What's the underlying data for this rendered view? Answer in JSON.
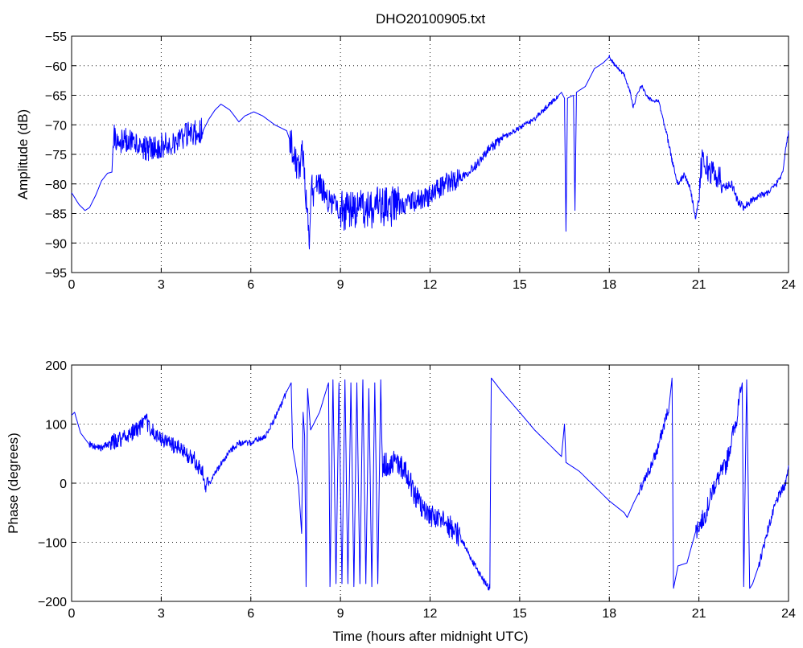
{
  "chart_data": [
    {
      "type": "line",
      "title": "DHO20100905.txt",
      "xlabel": "",
      "ylabel": "Amplitude (dB)",
      "xlim": [
        0,
        24
      ],
      "ylim": [
        -95,
        -55
      ],
      "xticks": [
        "0",
        "3",
        "6",
        "9",
        "12",
        "15",
        "18",
        "21",
        "24"
      ],
      "yticks": [
        "-95",
        "-90",
        "-85",
        "-80",
        "-75",
        "-70",
        "-65",
        "-60",
        "-55"
      ],
      "grid": true,
      "series": [
        {
          "color": "#0000ff",
          "points": [
            [
              0,
              -81.5
            ],
            [
              0.25,
              -83.5
            ],
            [
              0.45,
              -84.5
            ],
            [
              0.6,
              -84
            ],
            [
              0.8,
              -82
            ],
            [
              1.0,
              -79.5
            ],
            [
              1.2,
              -78.2
            ],
            [
              1.35,
              -78
            ],
            [
              1.4,
              -72
            ],
            [
              1.6,
              -72.5
            ],
            [
              2.0,
              -73
            ],
            [
              2.5,
              -74
            ],
            [
              3.0,
              -73.5
            ],
            [
              3.5,
              -72.5
            ],
            [
              4.0,
              -71.5
            ],
            [
              4.4,
              -71
            ],
            [
              4.6,
              -69
            ],
            [
              4.8,
              -67.5
            ],
            [
              5.0,
              -66.5
            ],
            [
              5.3,
              -67.5
            ],
            [
              5.6,
              -69.5
            ],
            [
              5.8,
              -68.5
            ],
            [
              6.1,
              -67.8
            ],
            [
              6.4,
              -68.5
            ],
            [
              6.8,
              -70
            ],
            [
              7.2,
              -71
            ],
            [
              7.4,
              -74
            ],
            [
              7.6,
              -78
            ],
            [
              7.75,
              -74
            ],
            [
              7.85,
              -82
            ],
            [
              7.95,
              -89.5
            ],
            [
              8.05,
              -81
            ],
            [
              8.3,
              -80
            ],
            [
              8.6,
              -83
            ],
            [
              8.9,
              -84
            ],
            [
              9.2,
              -84.5
            ],
            [
              9.5,
              -84
            ],
            [
              9.8,
              -84.5
            ],
            [
              10.2,
              -84
            ],
            [
              10.6,
              -84
            ],
            [
              11.0,
              -83.5
            ],
            [
              11.5,
              -83
            ],
            [
              12.0,
              -82
            ],
            [
              12.5,
              -80
            ],
            [
              13.0,
              -79
            ],
            [
              13.5,
              -77
            ],
            [
              14.0,
              -74
            ],
            [
              14.5,
              -72
            ],
            [
              15.0,
              -70.5
            ],
            [
              15.5,
              -69
            ],
            [
              16.0,
              -66.5
            ],
            [
              16.4,
              -64.5
            ],
            [
              16.5,
              -65.5
            ],
            [
              16.55,
              -88
            ],
            [
              16.6,
              -65.5
            ],
            [
              16.8,
              -65
            ],
            [
              16.85,
              -84.5
            ],
            [
              16.9,
              -64.5
            ],
            [
              17.2,
              -63.5
            ],
            [
              17.5,
              -60.5
            ],
            [
              17.8,
              -59.5
            ],
            [
              18.0,
              -58.5
            ],
            [
              18.2,
              -60
            ],
            [
              18.5,
              -61.5
            ],
            [
              18.7,
              -64.5
            ],
            [
              18.8,
              -67
            ],
            [
              19.0,
              -64
            ],
            [
              19.1,
              -63.5
            ],
            [
              19.3,
              -65.5
            ],
            [
              19.5,
              -66
            ],
            [
              19.65,
              -66
            ],
            [
              19.9,
              -71
            ],
            [
              20.1,
              -76
            ],
            [
              20.3,
              -80
            ],
            [
              20.5,
              -78.5
            ],
            [
              20.7,
              -80.5
            ],
            [
              20.9,
              -86
            ],
            [
              21.0,
              -82
            ],
            [
              21.1,
              -75.5
            ],
            [
              21.3,
              -77.5
            ],
            [
              21.6,
              -78.5
            ],
            [
              21.9,
              -80.5
            ],
            [
              22.1,
              -80
            ],
            [
              22.3,
              -83
            ],
            [
              22.5,
              -84
            ],
            [
              22.7,
              -83
            ],
            [
              23.0,
              -82
            ],
            [
              23.3,
              -81.5
            ],
            [
              23.6,
              -80
            ],
            [
              23.8,
              -78
            ],
            [
              24.0,
              -71
            ]
          ],
          "noise": [
            [
              1.4,
              4.4,
              2.2
            ],
            [
              7.3,
              8.1,
              3.0
            ],
            [
              8.2,
              9.0,
              2.0
            ],
            [
              9.0,
              11.0,
              3.5
            ],
            [
              11.0,
              13.0,
              1.8
            ],
            [
              13.0,
              14.5,
              0.8
            ],
            [
              14.5,
              16.3,
              0.4
            ],
            [
              18.0,
              19.8,
              0.3
            ],
            [
              19.8,
              21.0,
              0.5
            ],
            [
              21.0,
              21.8,
              2.2
            ],
            [
              21.8,
              22.8,
              0.7
            ],
            [
              22.8,
              24.0,
              0.5
            ]
          ]
        }
      ]
    },
    {
      "type": "line",
      "xlabel": "Time (hours after midnight UTC)",
      "ylabel": "Phase (degrees)",
      "xlim": [
        0,
        24
      ],
      "ylim": [
        -200,
        200
      ],
      "xticks": [
        "0",
        "3",
        "6",
        "9",
        "12",
        "15",
        "18",
        "21",
        "24"
      ],
      "yticks": [
        "-200",
        "-100",
        "0",
        "100",
        "200"
      ],
      "grid": true,
      "series": [
        {
          "color": "#0000ff",
          "points": [
            [
              0,
              115
            ],
            [
              0.1,
              120
            ],
            [
              0.3,
              85
            ],
            [
              0.6,
              65
            ],
            [
              1.0,
              60
            ],
            [
              1.5,
              72
            ],
            [
              2.0,
              85
            ],
            [
              2.3,
              95
            ],
            [
              2.5,
              105
            ],
            [
              2.8,
              80
            ],
            [
              3.2,
              70
            ],
            [
              3.7,
              55
            ],
            [
              4.1,
              40
            ],
            [
              4.4,
              15
            ],
            [
              4.45,
              -5
            ],
            [
              4.6,
              0
            ],
            [
              4.9,
              25
            ],
            [
              5.3,
              55
            ],
            [
              5.6,
              68
            ],
            [
              6.0,
              68
            ],
            [
              6.5,
              80
            ],
            [
              7.0,
              130
            ],
            [
              7.2,
              155
            ],
            [
              7.35,
              170
            ],
            [
              7.4,
              60
            ],
            [
              7.5,
              30
            ],
            [
              7.6,
              -5
            ],
            [
              7.7,
              -85
            ],
            [
              7.75,
              120
            ],
            [
              7.8,
              80
            ],
            [
              7.85,
              -175
            ],
            [
              7.9,
              160
            ],
            [
              8.0,
              90
            ],
            [
              8.3,
              120
            ],
            [
              8.6,
              170
            ],
            [
              8.65,
              -175
            ],
            [
              8.75,
              175
            ],
            [
              8.85,
              -170
            ],
            [
              8.95,
              170
            ],
            [
              9.05,
              -170
            ],
            [
              9.15,
              175
            ],
            [
              9.25,
              -170
            ],
            [
              9.35,
              170
            ],
            [
              9.45,
              -175
            ],
            [
              9.55,
              170
            ],
            [
              9.65,
              -170
            ],
            [
              9.75,
              175
            ],
            [
              9.85,
              -170
            ],
            [
              9.95,
              160
            ],
            [
              10.05,
              -175
            ],
            [
              10.15,
              170
            ],
            [
              10.25,
              -170
            ],
            [
              10.35,
              175
            ],
            [
              10.4,
              30
            ],
            [
              10.8,
              35
            ],
            [
              11.2,
              20
            ],
            [
              11.5,
              -20
            ],
            [
              11.8,
              -50
            ],
            [
              12.2,
              -60
            ],
            [
              12.6,
              -70
            ],
            [
              13.0,
              -90
            ],
            [
              13.4,
              -130
            ],
            [
              13.8,
              -165
            ],
            [
              14.0,
              -178
            ],
            [
              14.05,
              178
            ],
            [
              14.4,
              155
            ],
            [
              15.0,
              120
            ],
            [
              15.5,
              90
            ],
            [
              16.0,
              65
            ],
            [
              16.4,
              45
            ],
            [
              16.5,
              100
            ],
            [
              16.55,
              35
            ],
            [
              17.0,
              20
            ],
            [
              17.5,
              -5
            ],
            [
              18.0,
              -30
            ],
            [
              18.5,
              -50
            ],
            [
              18.6,
              -58
            ],
            [
              18.8,
              -35
            ],
            [
              19.2,
              5
            ],
            [
              19.6,
              55
            ],
            [
              20.0,
              130
            ],
            [
              20.1,
              178
            ],
            [
              20.15,
              -178
            ],
            [
              20.3,
              -140
            ],
            [
              20.6,
              -135
            ],
            [
              20.9,
              -80
            ],
            [
              21.2,
              -55
            ],
            [
              21.5,
              -5
            ],
            [
              21.9,
              30
            ],
            [
              22.3,
              120
            ],
            [
              22.45,
              170
            ],
            [
              22.5,
              -175
            ],
            [
              22.6,
              175
            ],
            [
              22.7,
              -178
            ],
            [
              22.8,
              -170
            ],
            [
              23.0,
              -140
            ],
            [
              23.3,
              -80
            ],
            [
              23.6,
              -30
            ],
            [
              23.9,
              0
            ],
            [
              24.0,
              30
            ]
          ],
          "noise": [
            [
              0.6,
              1.3,
              6
            ],
            [
              1.3,
              4.6,
              14
            ],
            [
              4.6,
              7.2,
              5
            ],
            [
              10.4,
              13.0,
              20
            ],
            [
              13.0,
              14.0,
              6
            ],
            [
              19.0,
              20.0,
              10
            ],
            [
              20.9,
              22.4,
              16
            ],
            [
              23.0,
              24.0,
              8
            ]
          ]
        }
      ]
    }
  ]
}
